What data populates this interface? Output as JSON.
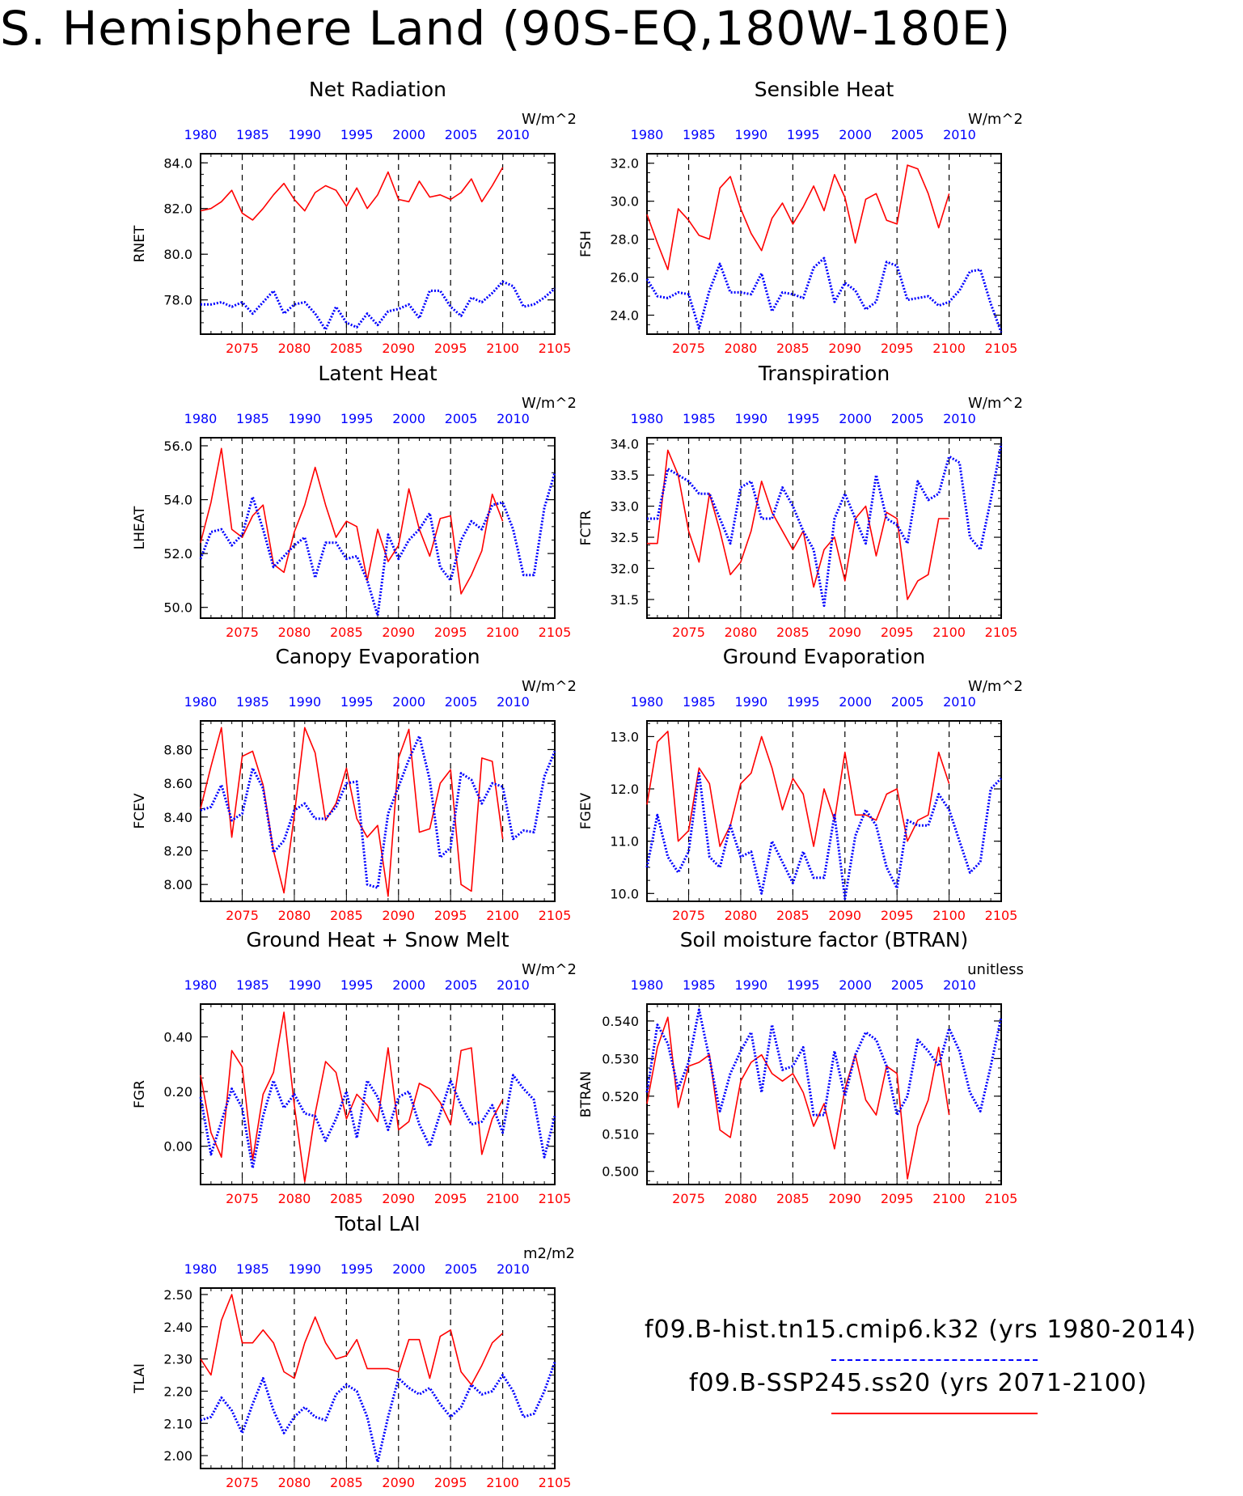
{
  "title": "S. Hemisphere Land (90S-EQ,180W-180E)",
  "legend": {
    "hist_label": "f09.B-hist.tn15.cmip6.k32 (yrs 1980-2014)",
    "hist_color": "#0000ff",
    "ssp_label": "f09.B-SSP245.ss20 (yrs 2071-2100)",
    "ssp_color": "#ff0000"
  },
  "chart_data": [
    {
      "type": "line",
      "title": "Net Radiation",
      "ylabel": "RNET",
      "units": "W/m^2",
      "ylim": [
        76.5,
        84.4
      ],
      "yticks": [
        "78.0",
        "80.0",
        "82.0",
        "84.0"
      ],
      "ytick_values": [
        78,
        80,
        82,
        84
      ],
      "x_bottom_ticks": [
        "2075",
        "2080",
        "2085",
        "2090",
        "2095",
        "2100",
        "2105"
      ],
      "x_top_ticks": [
        "1980",
        "1985",
        "1990",
        "1995",
        "2000",
        "2005",
        "2010"
      ],
      "series": [
        {
          "color": "#ff0000",
          "x_start": 2071,
          "values": [
            81.9,
            82.0,
            82.3,
            82.8,
            81.8,
            81.5,
            82.0,
            82.6,
            83.1,
            82.4,
            81.9,
            82.7,
            83.0,
            82.8,
            82.1,
            82.9,
            82.0,
            82.6,
            83.6,
            82.4,
            82.3,
            83.2,
            82.5,
            82.6,
            82.4,
            82.7,
            83.3,
            82.3,
            83.0,
            83.8
          ]
        },
        {
          "color": "#0000ff",
          "x_start": 1980,
          "values": [
            77.8,
            77.8,
            77.9,
            77.7,
            77.9,
            77.4,
            77.9,
            78.4,
            77.4,
            77.8,
            77.9,
            77.4,
            76.7,
            77.7,
            77.0,
            76.8,
            77.4,
            76.9,
            77.5,
            77.6,
            77.8,
            77.2,
            78.4,
            78.4,
            77.7,
            77.3,
            78.1,
            77.9,
            78.3,
            78.8,
            78.6,
            77.7,
            77.8,
            78.1,
            78.5
          ]
        }
      ]
    },
    {
      "type": "line",
      "title": "Sensible Heat",
      "ylabel": "FSH",
      "units": "W/m^2",
      "ylim": [
        23.0,
        32.5
      ],
      "yticks": [
        "24.0",
        "26.0",
        "28.0",
        "30.0",
        "32.0"
      ],
      "ytick_values": [
        24,
        26,
        28,
        30,
        32
      ],
      "x_bottom_ticks": [
        "2075",
        "2080",
        "2085",
        "2090",
        "2095",
        "2100",
        "2105"
      ],
      "x_top_ticks": [
        "1980",
        "1985",
        "1990",
        "1995",
        "2000",
        "2005",
        "2010"
      ],
      "series": [
        {
          "color": "#ff0000",
          "x_start": 2071,
          "values": [
            29.3,
            27.8,
            26.4,
            29.6,
            29.0,
            28.2,
            28.0,
            30.7,
            31.3,
            29.6,
            28.3,
            27.4,
            29.1,
            29.9,
            28.8,
            29.7,
            30.8,
            29.5,
            31.4,
            30.2,
            27.8,
            30.1,
            30.4,
            29.0,
            28.8,
            31.9,
            31.7,
            30.4,
            28.6,
            30.4
          ]
        },
        {
          "color": "#0000ff",
          "x_start": 1980,
          "values": [
            25.9,
            25.0,
            24.9,
            25.2,
            25.1,
            23.3,
            25.3,
            26.7,
            25.2,
            25.2,
            25.1,
            26.2,
            24.2,
            25.2,
            25.1,
            24.9,
            26.5,
            27.0,
            24.7,
            25.7,
            25.3,
            24.3,
            24.7,
            26.8,
            26.6,
            24.8,
            24.9,
            25.0,
            24.5,
            24.7,
            25.3,
            26.3,
            26.4,
            24.6,
            23.1
          ]
        }
      ]
    },
    {
      "type": "line",
      "title": "Latent Heat",
      "ylabel": "LHEAT",
      "units": "W/m^2",
      "ylim": [
        49.6,
        56.3
      ],
      "yticks": [
        "50.0",
        "52.0",
        "54.0",
        "56.0"
      ],
      "ytick_values": [
        50,
        52,
        54,
        56
      ],
      "x_bottom_ticks": [
        "2075",
        "2080",
        "2085",
        "2090",
        "2095",
        "2100",
        "2105"
      ],
      "x_top_ticks": [
        "1980",
        "1985",
        "1990",
        "1995",
        "2000",
        "2005",
        "2010"
      ],
      "series": [
        {
          "color": "#ff0000",
          "x_start": 2071,
          "values": [
            52.4,
            53.9,
            55.9,
            52.9,
            52.6,
            53.4,
            53.8,
            51.6,
            51.3,
            52.8,
            53.8,
            55.2,
            53.8,
            52.6,
            53.2,
            53.0,
            51.0,
            52.9,
            51.7,
            52.3,
            54.4,
            52.9,
            51.9,
            53.3,
            53.4,
            50.5,
            51.2,
            52.1,
            54.2,
            53.2
          ]
        },
        {
          "color": "#0000ff",
          "x_start": 1980,
          "values": [
            51.8,
            52.8,
            52.9,
            52.3,
            52.7,
            54.1,
            52.9,
            51.5,
            51.9,
            52.3,
            52.6,
            51.1,
            52.4,
            52.4,
            51.8,
            51.9,
            51.0,
            49.7,
            52.7,
            51.8,
            52.5,
            52.9,
            53.5,
            51.5,
            51.0,
            52.5,
            53.2,
            52.9,
            53.8,
            53.9,
            52.9,
            51.2,
            51.2,
            53.7,
            55.0
          ]
        }
      ]
    },
    {
      "type": "line",
      "title": "Transpiration",
      "ylabel": "FCTR",
      "units": "W/m^2",
      "ylim": [
        31.2,
        34.1
      ],
      "yticks": [
        "31.5",
        "32.0",
        "32.5",
        "33.0",
        "33.5",
        "34.0"
      ],
      "ytick_values": [
        31.5,
        32,
        32.5,
        33,
        33.5,
        34
      ],
      "x_bottom_ticks": [
        "2075",
        "2080",
        "2085",
        "2090",
        "2095",
        "2100",
        "2105"
      ],
      "x_top_ticks": [
        "1980",
        "1985",
        "1990",
        "1995",
        "2000",
        "2005",
        "2010"
      ],
      "series": [
        {
          "color": "#ff0000",
          "x_start": 2071,
          "values": [
            32.4,
            32.4,
            33.9,
            33.5,
            32.6,
            32.1,
            33.2,
            32.6,
            31.9,
            32.1,
            32.6,
            33.4,
            32.9,
            32.6,
            32.3,
            32.6,
            31.7,
            32.3,
            32.5,
            31.8,
            32.8,
            33.0,
            32.2,
            32.9,
            32.8,
            31.5,
            31.8,
            31.9,
            32.8,
            32.8
          ]
        },
        {
          "color": "#0000ff",
          "x_start": 1980,
          "values": [
            32.8,
            32.8,
            33.6,
            33.5,
            33.4,
            33.2,
            33.2,
            32.8,
            32.4,
            33.3,
            33.4,
            32.8,
            32.8,
            33.3,
            33.0,
            32.6,
            32.3,
            31.4,
            32.8,
            33.2,
            32.8,
            32.4,
            33.5,
            32.8,
            32.7,
            32.4,
            33.4,
            33.1,
            33.2,
            33.8,
            33.7,
            32.5,
            32.3,
            33.1,
            34.0
          ]
        }
      ]
    },
    {
      "type": "line",
      "title": "Canopy Evaporation",
      "ylabel": "FCEV",
      "units": "W/m^2",
      "ylim": [
        7.9,
        8.97
      ],
      "yticks": [
        "8.00",
        "8.20",
        "8.40",
        "8.60",
        "8.80"
      ],
      "ytick_values": [
        8.0,
        8.2,
        8.4,
        8.6,
        8.8
      ],
      "x_bottom_ticks": [
        "2075",
        "2080",
        "2085",
        "2090",
        "2095",
        "2100",
        "2105"
      ],
      "x_top_ticks": [
        "1980",
        "1985",
        "1990",
        "1995",
        "2000",
        "2005",
        "2010"
      ],
      "series": [
        {
          "color": "#ff0000",
          "x_start": 2071,
          "values": [
            8.45,
            8.7,
            8.93,
            8.28,
            8.76,
            8.79,
            8.59,
            8.2,
            7.95,
            8.41,
            8.93,
            8.78,
            8.38,
            8.48,
            8.69,
            8.39,
            8.28,
            8.35,
            7.93,
            8.75,
            8.92,
            8.31,
            8.33,
            8.6,
            8.68,
            8.0,
            7.96,
            8.75,
            8.73,
            8.27
          ]
        },
        {
          "color": "#0000ff",
          "x_start": 1980,
          "values": [
            8.44,
            8.46,
            8.59,
            8.38,
            8.42,
            8.69,
            8.57,
            8.19,
            8.26,
            8.44,
            8.48,
            8.39,
            8.39,
            8.46,
            8.6,
            8.61,
            8.0,
            7.98,
            8.42,
            8.58,
            8.74,
            8.88,
            8.62,
            8.16,
            8.22,
            8.66,
            8.62,
            8.48,
            8.6,
            8.58,
            8.27,
            8.32,
            8.31,
            8.64,
            8.79
          ]
        }
      ]
    },
    {
      "type": "line",
      "title": "Ground Evaporation",
      "ylabel": "FGEV",
      "units": "W/m^2",
      "ylim": [
        9.85,
        13.3
      ],
      "yticks": [
        "10.0",
        "11.0",
        "12.0",
        "13.0"
      ],
      "ytick_values": [
        10,
        11,
        12,
        13
      ],
      "x_bottom_ticks": [
        "2075",
        "2080",
        "2085",
        "2090",
        "2095",
        "2100",
        "2105"
      ],
      "x_top_ticks": [
        "1980",
        "1985",
        "1990",
        "1995",
        "2000",
        "2005",
        "2010"
      ],
      "series": [
        {
          "color": "#ff0000",
          "x_start": 2071,
          "values": [
            11.7,
            12.9,
            13.1,
            11.0,
            11.2,
            12.4,
            12.1,
            10.9,
            11.3,
            12.1,
            12.3,
            13.0,
            12.4,
            11.6,
            12.2,
            11.9,
            10.9,
            12.0,
            11.4,
            12.7,
            11.5,
            11.5,
            11.4,
            11.9,
            12.0,
            11.0,
            11.4,
            11.5,
            12.7,
            12.1
          ]
        },
        {
          "color": "#0000ff",
          "x_start": 1980,
          "values": [
            10.5,
            11.5,
            10.7,
            10.4,
            10.8,
            12.3,
            10.7,
            10.5,
            11.3,
            10.7,
            10.8,
            10.0,
            11.0,
            10.6,
            10.2,
            10.8,
            10.3,
            10.3,
            11.5,
            9.9,
            11.1,
            11.6,
            11.3,
            10.5,
            10.1,
            11.4,
            11.3,
            11.3,
            11.9,
            11.6,
            11.0,
            10.4,
            10.6,
            12.0,
            12.2
          ]
        }
      ]
    },
    {
      "type": "line",
      "title": "Ground Heat + Snow Melt",
      "ylabel": "FGR",
      "units": "W/m^2",
      "ylim": [
        -0.14,
        0.52
      ],
      "yticks": [
        "0.00",
        "0.20",
        "0.40"
      ],
      "ytick_values": [
        0.0,
        0.2,
        0.4
      ],
      "x_bottom_ticks": [
        "2075",
        "2080",
        "2085",
        "2090",
        "2095",
        "2100",
        "2105"
      ],
      "x_top_ticks": [
        "1980",
        "1985",
        "1990",
        "1995",
        "2000",
        "2005",
        "2010"
      ],
      "series": [
        {
          "color": "#ff0000",
          "x_start": 2071,
          "values": [
            0.26,
            0.05,
            -0.04,
            0.35,
            0.29,
            -0.05,
            0.19,
            0.27,
            0.49,
            0.15,
            -0.13,
            0.12,
            0.31,
            0.27,
            0.1,
            0.19,
            0.15,
            0.09,
            0.36,
            0.06,
            0.09,
            0.23,
            0.21,
            0.16,
            0.08,
            0.35,
            0.36,
            -0.03,
            0.1,
            0.17
          ]
        },
        {
          "color": "#0000ff",
          "x_start": 1980,
          "values": [
            0.18,
            -0.03,
            0.09,
            0.21,
            0.14,
            -0.08,
            0.11,
            0.24,
            0.14,
            0.19,
            0.12,
            0.11,
            0.02,
            0.1,
            0.2,
            0.03,
            0.24,
            0.18,
            0.06,
            0.18,
            0.2,
            0.08,
            0.0,
            0.12,
            0.24,
            0.15,
            0.08,
            0.09,
            0.15,
            0.05,
            0.26,
            0.21,
            0.17,
            -0.04,
            0.11
          ]
        }
      ]
    },
    {
      "type": "line",
      "title": "Soil moisture factor (BTRAN)",
      "ylabel": "BTRAN",
      "units": "unitless",
      "ylim": [
        0.4965,
        0.5445
      ],
      "yticks": [
        "0.500",
        "0.510",
        "0.520",
        "0.530",
        "0.540"
      ],
      "ytick_values": [
        0.5,
        0.51,
        0.52,
        0.53,
        0.54
      ],
      "x_bottom_ticks": [
        "2075",
        "2080",
        "2085",
        "2090",
        "2095",
        "2100",
        "2105"
      ],
      "x_top_ticks": [
        "1980",
        "1985",
        "1990",
        "1995",
        "2000",
        "2005",
        "2010"
      ],
      "series": [
        {
          "color": "#ff0000",
          "x_start": 2071,
          "values": [
            0.518,
            0.533,
            0.541,
            0.517,
            0.528,
            0.529,
            0.531,
            0.511,
            0.509,
            0.524,
            0.529,
            0.531,
            0.526,
            0.524,
            0.526,
            0.521,
            0.512,
            0.518,
            0.506,
            0.522,
            0.531,
            0.519,
            0.515,
            0.528,
            0.526,
            0.498,
            0.512,
            0.519,
            0.533,
            0.515
          ]
        },
        {
          "color": "#0000ff",
          "x_start": 1980,
          "values": [
            0.521,
            0.539,
            0.534,
            0.522,
            0.529,
            0.543,
            0.53,
            0.516,
            0.526,
            0.532,
            0.537,
            0.521,
            0.539,
            0.527,
            0.528,
            0.533,
            0.515,
            0.515,
            0.532,
            0.52,
            0.531,
            0.537,
            0.535,
            0.528,
            0.515,
            0.52,
            0.535,
            0.532,
            0.528,
            0.538,
            0.532,
            0.521,
            0.516,
            0.528,
            0.541
          ]
        }
      ]
    },
    {
      "type": "line",
      "title": "Total LAI",
      "ylabel": "TLAI",
      "units": "m2/m2",
      "ylim": [
        1.96,
        2.52
      ],
      "yticks": [
        "2.00",
        "2.10",
        "2.20",
        "2.30",
        "2.40",
        "2.50"
      ],
      "ytick_values": [
        2.0,
        2.1,
        2.2,
        2.3,
        2.4,
        2.5
      ],
      "x_bottom_ticks": [
        "2075",
        "2080",
        "2085",
        "2090",
        "2095",
        "2100",
        "2105"
      ],
      "x_top_ticks": [
        "1980",
        "1985",
        "1990",
        "1995",
        "2000",
        "2005",
        "2010"
      ],
      "series": [
        {
          "color": "#ff0000",
          "x_start": 2071,
          "values": [
            2.3,
            2.25,
            2.42,
            2.5,
            2.35,
            2.35,
            2.39,
            2.35,
            2.26,
            2.24,
            2.35,
            2.43,
            2.35,
            2.3,
            2.31,
            2.36,
            2.27,
            2.27,
            2.27,
            2.26,
            2.36,
            2.36,
            2.24,
            2.37,
            2.39,
            2.26,
            2.22,
            2.28,
            2.35,
            2.38
          ]
        },
        {
          "color": "#0000ff",
          "x_start": 1980,
          "values": [
            2.11,
            2.12,
            2.18,
            2.14,
            2.07,
            2.16,
            2.24,
            2.14,
            2.07,
            2.12,
            2.15,
            2.12,
            2.11,
            2.19,
            2.22,
            2.2,
            2.12,
            1.98,
            2.12,
            2.24,
            2.21,
            2.19,
            2.21,
            2.16,
            2.12,
            2.15,
            2.22,
            2.19,
            2.2,
            2.25,
            2.2,
            2.12,
            2.13,
            2.2,
            2.29
          ]
        }
      ]
    }
  ]
}
